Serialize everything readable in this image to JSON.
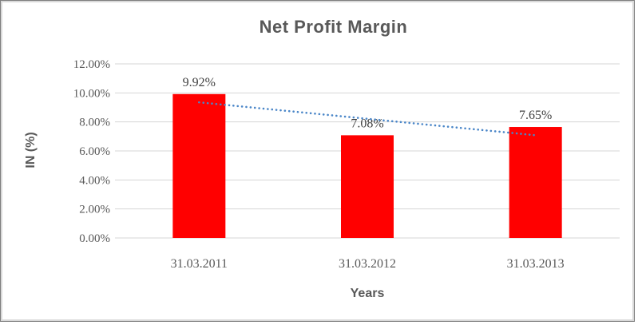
{
  "chart_data": {
    "type": "bar",
    "title": "Net Profit Margin",
    "categories": [
      "31.03.2011",
      "31.03.2012",
      "31.03.2013"
    ],
    "values": [
      9.92,
      7.08,
      7.65
    ],
    "data_labels": [
      "9.92%",
      "7.08%",
      "7.65%"
    ],
    "xlabel": "Years",
    "ylabel": "IN (%)",
    "ylim": [
      0,
      12
    ],
    "ytick_step": 2,
    "ytick_labels": [
      "0.00%",
      "2.00%",
      "4.00%",
      "6.00%",
      "8.00%",
      "10.00%",
      "12.00%"
    ],
    "grid": true,
    "legend": "none",
    "bar_color": "#ff0000",
    "trendline": {
      "style": "dotted",
      "color": "#4a86c8",
      "start_value": 9.35,
      "end_value": 7.08
    }
  },
  "styles": {
    "title_color": "#595959",
    "tick_color": "#595959",
    "data_label_color": "#404040",
    "gridline_color": "#d6d6d6",
    "background": "#ffffff"
  }
}
